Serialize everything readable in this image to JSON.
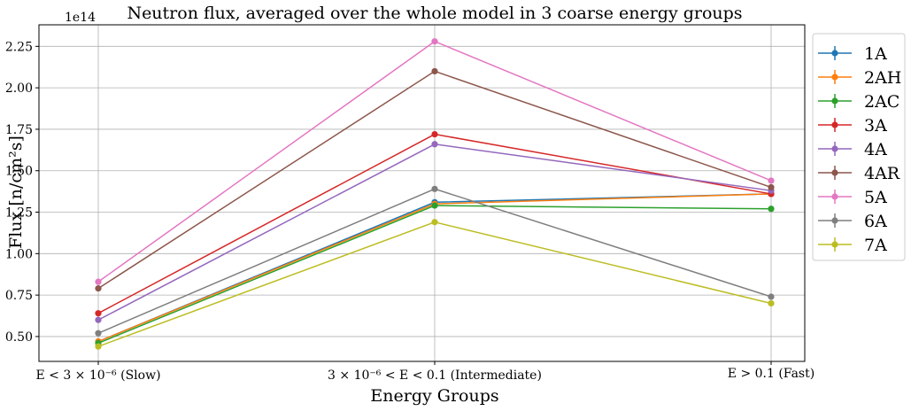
{
  "chart_data": {
    "type": "line",
    "title": "Neutron flux, averaged over the whole model in 3 coarse energy groups",
    "xlabel": "Energy Groups",
    "ylabel": "Flux [n/cm²s]",
    "y_offset_text": "1e14",
    "categories": [
      "E < 3 × 10⁻⁶ (Slow)",
      "3 × 10⁻⁶ < E < 0.1 (Intermediate)",
      "E > 0.1 (Fast)"
    ],
    "yticks": [
      "0.50",
      "0.75",
      "1.00",
      "1.25",
      "1.50",
      "1.75",
      "2.00",
      "2.25"
    ],
    "ytick_values": [
      0.5,
      0.75,
      1.0,
      1.25,
      1.5,
      1.75,
      2.0,
      2.25
    ],
    "ylim": [
      0.35,
      2.38
    ],
    "grid": true,
    "legend_position": "outside-right",
    "series": [
      {
        "name": "1A",
        "color": "#1f77b4",
        "values": [
          0.47,
          1.31,
          1.36
        ]
      },
      {
        "name": "2AH",
        "color": "#ff7f0e",
        "values": [
          0.47,
          1.3,
          1.36
        ]
      },
      {
        "name": "2AC",
        "color": "#2ca02c",
        "values": [
          0.46,
          1.29,
          1.27
        ]
      },
      {
        "name": "3A",
        "color": "#d62728",
        "values": [
          0.64,
          1.72,
          1.36
        ]
      },
      {
        "name": "4A",
        "color": "#9467bd",
        "values": [
          0.6,
          1.66,
          1.38
        ]
      },
      {
        "name": "4AR",
        "color": "#8c564b",
        "values": [
          0.79,
          2.1,
          1.4
        ]
      },
      {
        "name": "5A",
        "color": "#e377c2",
        "values": [
          0.83,
          2.28,
          1.44
        ]
      },
      {
        "name": "6A",
        "color": "#7f7f7f",
        "values": [
          0.52,
          1.39,
          0.74
        ]
      },
      {
        "name": "7A",
        "color": "#bcbd22",
        "values": [
          0.44,
          1.19,
          0.7
        ]
      }
    ]
  }
}
